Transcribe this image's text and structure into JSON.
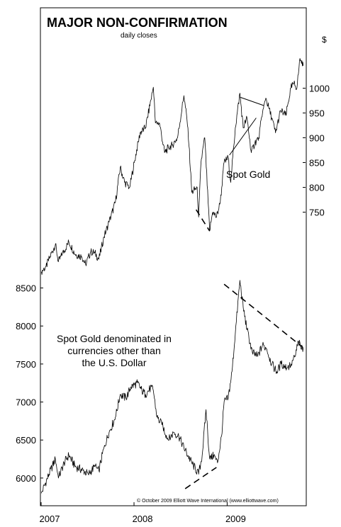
{
  "chart_data": [
    {
      "type": "line",
      "title": "MAJOR NON-CONFIRMATION",
      "subtitle": "daily closes",
      "series": [
        {
          "name": "Spot Gold",
          "points": [
            [
              "2007-01-02",
              630
            ],
            [
              "2007-01-20",
              640
            ],
            [
              "2007-02-05",
              660
            ],
            [
              "2007-02-26",
              685
            ],
            [
              "2007-03-10",
              650
            ],
            [
              "2007-03-25",
              665
            ],
            [
              "2007-04-20",
              690
            ],
            [
              "2007-05-15",
              665
            ],
            [
              "2007-06-10",
              660
            ],
            [
              "2007-06-25",
              645
            ],
            [
              "2007-07-15",
              670
            ],
            [
              "2007-07-31",
              668
            ],
            [
              "2007-08-16",
              655
            ],
            [
              "2007-09-05",
              700
            ],
            [
              "2007-09-25",
              730
            ],
            [
              "2007-10-20",
              770
            ],
            [
              "2007-11-08",
              840
            ],
            [
              "2007-11-25",
              810
            ],
            [
              "2007-12-15",
              800
            ],
            [
              "2008-01-02",
              850
            ],
            [
              "2008-01-25",
              910
            ],
            [
              "2008-02-15",
              920
            ],
            [
              "2008-03-17",
              1002
            ],
            [
              "2008-03-25",
              930
            ],
            [
              "2008-04-10",
              930
            ],
            [
              "2008-04-30",
              870
            ],
            [
              "2008-05-15",
              880
            ],
            [
              "2008-05-30",
              885
            ],
            [
              "2008-06-20",
              900
            ],
            [
              "2008-07-15",
              985
            ],
            [
              "2008-07-31",
              920
            ],
            [
              "2008-08-15",
              790
            ],
            [
              "2008-09-05",
              800
            ],
            [
              "2008-09-11",
              740
            ],
            [
              "2008-09-20",
              850
            ],
            [
              "2008-10-05",
              900
            ],
            [
              "2008-10-24",
              712
            ],
            [
              "2008-11-05",
              750
            ],
            [
              "2008-11-20",
              740
            ],
            [
              "2008-12-05",
              770
            ],
            [
              "2008-12-20",
              850
            ],
            [
              "2009-01-05",
              860
            ],
            [
              "2009-01-15",
              810
            ],
            [
              "2009-02-02",
              920
            ],
            [
              "2009-02-20",
              990
            ],
            [
              "2009-03-05",
              920
            ],
            [
              "2009-03-20",
              940
            ],
            [
              "2009-04-06",
              870
            ],
            [
              "2009-04-20",
              890
            ],
            [
              "2009-05-05",
              900
            ],
            [
              "2009-05-20",
              950
            ],
            [
              "2009-06-02",
              980
            ],
            [
              "2009-06-25",
              940
            ],
            [
              "2009-07-10",
              910
            ],
            [
              "2009-07-30",
              955
            ],
            [
              "2009-08-20",
              945
            ],
            [
              "2009-09-08",
              1000
            ],
            [
              "2009-09-20",
              1010
            ],
            [
              "2009-10-02",
              1000
            ],
            [
              "2009-10-14",
              1060
            ],
            [
              "2009-10-20",
              1050
            ],
            [
              "2009-10-27",
              1045
            ]
          ]
        }
      ],
      "y_axis": {
        "label": "$",
        "ticks": [
          750,
          800,
          850,
          900,
          950,
          1000
        ],
        "range": [
          635,
          1075
        ]
      },
      "annotations": [
        {
          "text": "Spot Gold"
        }
      ]
    },
    {
      "type": "line",
      "series": [
        {
          "name": "Spot Gold denominated in currencies other than the U.S. Dollar",
          "points": [
            [
              "2007-01-02",
              5800
            ],
            [
              "2007-02-01",
              6050
            ],
            [
              "2007-02-26",
              6250
            ],
            [
              "2007-03-10",
              6000
            ],
            [
              "2007-04-01",
              6200
            ],
            [
              "2007-04-20",
              6300
            ],
            [
              "2007-05-15",
              6150
            ],
            [
              "2007-06-15",
              6100
            ],
            [
              "2007-07-05",
              6050
            ],
            [
              "2007-07-31",
              6150
            ],
            [
              "2007-08-16",
              6100
            ],
            [
              "2007-09-05",
              6400
            ],
            [
              "2007-09-25",
              6600
            ],
            [
              "2007-10-20",
              6800
            ],
            [
              "2007-11-08",
              7100
            ],
            [
              "2007-12-01",
              7050
            ],
            [
              "2007-12-20",
              7200
            ],
            [
              "2008-01-15",
              7250
            ],
            [
              "2008-02-01",
              7150
            ],
            [
              "2008-02-15",
              7100
            ],
            [
              "2008-03-10",
              7200
            ],
            [
              "2008-03-17",
              7150
            ],
            [
              "2008-03-31",
              6800
            ],
            [
              "2008-04-20",
              6700
            ],
            [
              "2008-05-15",
              6500
            ],
            [
              "2008-06-05",
              6600
            ],
            [
              "2008-06-25",
              6550
            ],
            [
              "2008-07-15",
              6400
            ],
            [
              "2008-08-15",
              6200
            ],
            [
              "2008-09-11",
              6050
            ],
            [
              "2008-09-25",
              6300
            ],
            [
              "2008-10-10",
              6900
            ],
            [
              "2008-10-24",
              6250
            ],
            [
              "2008-11-10",
              6300
            ],
            [
              "2008-11-24",
              6200
            ],
            [
              "2008-12-10",
              6550
            ],
            [
              "2008-12-20",
              7000
            ],
            [
              "2009-01-05",
              7050
            ],
            [
              "2009-01-20",
              7400
            ],
            [
              "2009-02-02",
              7900
            ],
            [
              "2009-02-20",
              8600
            ],
            [
              "2009-03-05",
              8250
            ],
            [
              "2009-03-20",
              7950
            ],
            [
              "2009-04-10",
              7650
            ],
            [
              "2009-05-01",
              7600
            ],
            [
              "2009-05-20",
              7750
            ],
            [
              "2009-06-05",
              7700
            ],
            [
              "2009-06-25",
              7500
            ],
            [
              "2009-07-15",
              7400
            ],
            [
              "2009-08-01",
              7500
            ],
            [
              "2009-08-25",
              7450
            ],
            [
              "2009-09-10",
              7500
            ],
            [
              "2009-09-25",
              7600
            ],
            [
              "2009-10-08",
              7800
            ],
            [
              "2009-10-18",
              7700
            ],
            [
              "2009-10-27",
              7720
            ]
          ]
        }
      ],
      "y_axis": {
        "ticks": [
          6000,
          6500,
          7000,
          7500,
          8000,
          8500
        ],
        "range": [
          5710,
          8850
        ]
      },
      "annotations": [
        {
          "lines": [
            "Spot Gold denominated in",
            "currencies other than",
            "the U.S. Dollar"
          ]
        }
      ]
    }
  ],
  "x_axis": {
    "ticks": [
      {
        "label": "2007",
        "date": "2007-01-01"
      },
      {
        "label": "2008",
        "date": "2008-01-01"
      },
      {
        "label": "2009",
        "date": "2009-01-01"
      }
    ],
    "range": [
      "2007-01-01",
      "2009-11-05"
    ]
  },
  "copyright": "© October 2009 Elliott Wave International (www.elliottwave.com)",
  "trendlines": [
    {
      "chart": 0,
      "style": "solid",
      "from": [
        "2009-01-10",
        865
      ],
      "to": [
        "2009-04-25",
        940
      ]
    },
    {
      "chart": 0,
      "style": "solid",
      "from": [
        "2009-02-20",
        982
      ],
      "to": [
        "2009-05-25",
        965
      ]
    },
    {
      "chart": 0,
      "style": "dashed",
      "from": [
        "2008-09-01",
        755
      ],
      "to": [
        "2008-10-24",
        712
      ]
    },
    {
      "chart": 1,
      "style": "dashed",
      "from": [
        "2008-12-20",
        8550
      ],
      "to": [
        "2009-10-25",
        7720
      ]
    },
    {
      "chart": 1,
      "style": "dashed",
      "from": [
        "2008-07-20",
        5860
      ],
      "to": [
        "2008-11-20",
        6140
      ]
    }
  ]
}
